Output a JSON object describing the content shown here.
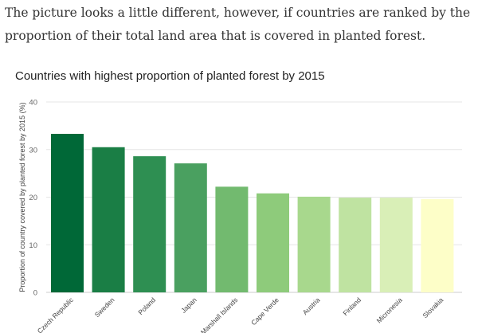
{
  "article": {
    "intro_text": "The picture looks a little different, however, if countries are ranked by the proportion of their total land area that is covered in planted forest."
  },
  "chart_data": {
    "type": "bar",
    "title": "Countries with highest proportion of planted forest by 2015",
    "xlabel": "",
    "ylabel": "Proportion of country covered by planted forest by 2015 (%)",
    "ylim": [
      0,
      40
    ],
    "yticks": [
      0,
      10,
      20,
      30,
      40
    ],
    "grid": true,
    "categories": [
      "Czech Republic",
      "Sweden",
      "Poland",
      "Japan",
      "Marshall Islands",
      "Cape Verde",
      "Austria",
      "Finland",
      "Micronesia",
      "Slovakia"
    ],
    "values": [
      33.3,
      30.5,
      28.6,
      27.1,
      22.2,
      20.8,
      20.1,
      19.9,
      19.9,
      19.6
    ],
    "colors": [
      "#006837",
      "#1a7e45",
      "#2e8f52",
      "#4aa060",
      "#72ba6f",
      "#8ecb7b",
      "#a8d88d",
      "#bfe3a1",
      "#d9efb7",
      "#fdfec8"
    ]
  }
}
